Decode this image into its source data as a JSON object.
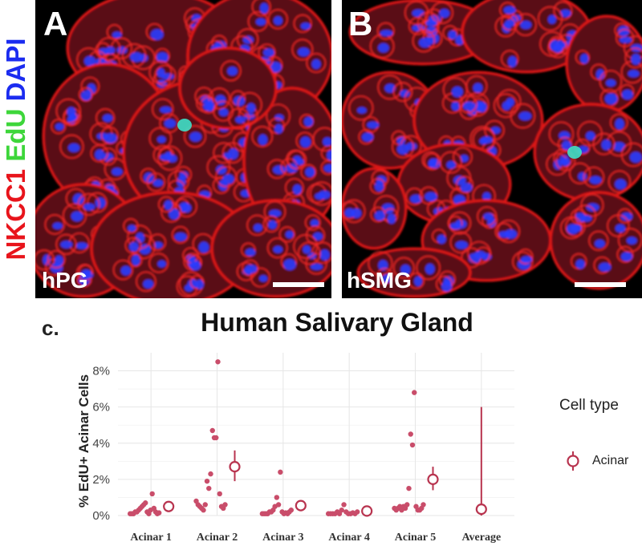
{
  "figure": {
    "stain_label_parts": [
      {
        "text": "NKCC1",
        "color": "#e8141b"
      },
      {
        "text": "EdU",
        "color": "#3dd63a"
      },
      {
        "text": "DAPI",
        "color": "#1b2cf0"
      }
    ],
    "panel_a": {
      "letter": "A",
      "tag": "hPG"
    },
    "panel_b": {
      "letter": "B",
      "tag": "hSMG"
    },
    "panel_c_label": "c."
  },
  "chart_data": {
    "type": "scatter",
    "title": "Human Salivary Gland",
    "xlabel": "",
    "ylabel": "% EdU+ Acinar Cells",
    "categories": [
      "Acinar 1",
      "Acinar 2",
      "Acinar 3",
      "Acinar 4",
      "Acinar 5",
      "Average"
    ],
    "ylim": [
      0,
      9
    ],
    "y_ticks": [
      0,
      2,
      4,
      6,
      8
    ],
    "y_tick_labels": [
      "0%",
      "2%",
      "4%",
      "6%",
      "8%"
    ],
    "legend": {
      "title": "Cell type",
      "entries": [
        "Acinar"
      ],
      "position": "right"
    },
    "colors": {
      "points": "#c94d6a",
      "mean": "#b8344f",
      "grid": "#e6e6e6"
    },
    "series": [
      {
        "name": "Acinar 1",
        "points": [
          0.1,
          0.1,
          0.1,
          0.2,
          0.2,
          0.3,
          0.4,
          0.5,
          0.6,
          0.7,
          0.2,
          0.1,
          0.3,
          1.2,
          0.4,
          0.2,
          0.1,
          0.15
        ],
        "mean": 0.5,
        "ci": [
          0.35,
          0.65
        ]
      },
      {
        "name": "Acinar 2",
        "points": [
          0.8,
          0.6,
          0.5,
          0.4,
          0.3,
          0.6,
          1.9,
          1.5,
          2.3,
          4.7,
          4.3,
          4.3,
          8.5,
          1.2,
          0.5,
          0.4,
          0.6
        ],
        "mean": 2.7,
        "ci": [
          1.9,
          3.6
        ]
      },
      {
        "name": "Acinar 3",
        "points": [
          0.1,
          0.1,
          0.1,
          0.1,
          0.2,
          0.2,
          0.3,
          0.5,
          1.0,
          0.6,
          2.4,
          0.2,
          0.1,
          0.15,
          0.1,
          0.2,
          0.3
        ],
        "mean": 0.55,
        "ci": [
          0.4,
          0.7
        ]
      },
      {
        "name": "Acinar 4",
        "points": [
          0.1,
          0.1,
          0.1,
          0.1,
          0.2,
          0.1,
          0.3,
          0.6,
          0.2,
          0.1,
          0.1,
          0.15,
          0.1,
          0.2
        ],
        "mean": 0.25,
        "ci": [
          0.15,
          0.35
        ]
      },
      {
        "name": "Acinar 5",
        "points": [
          0.4,
          0.3,
          0.4,
          0.5,
          0.3,
          0.5,
          0.4,
          0.6,
          1.5,
          4.5,
          3.9,
          6.8,
          0.5,
          0.3,
          0.3,
          0.4,
          0.6
        ],
        "mean": 2.0,
        "ci": [
          1.4,
          2.7
        ]
      },
      {
        "name": "Average",
        "points": [],
        "mean": 0.35,
        "ci": [
          0.0,
          6.0
        ]
      }
    ]
  }
}
